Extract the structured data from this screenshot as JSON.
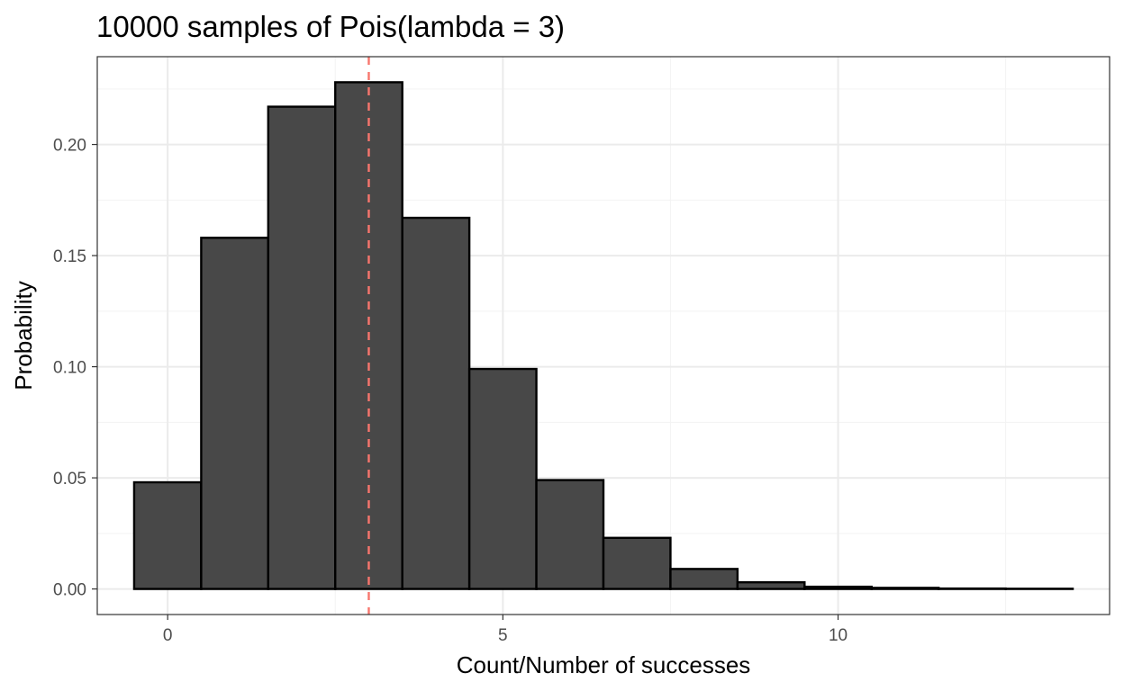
{
  "chart_data": {
    "type": "bar",
    "title": "10000 samples of Pois(lambda = 3)",
    "xlabel": "Count/Number of successes",
    "ylabel": "Probability",
    "x": [
      0,
      1,
      2,
      3,
      4,
      5,
      6,
      7,
      8,
      9,
      10,
      11,
      12,
      13
    ],
    "values": [
      0.048,
      0.158,
      0.217,
      0.228,
      0.167,
      0.099,
      0.049,
      0.023,
      0.009,
      0.003,
      0.001,
      0.0005,
      0.0002,
      0.0001
    ],
    "xlim": [
      -1.05,
      14.05
    ],
    "ylim": [
      -0.0115,
      0.2395
    ],
    "xticks": [
      0,
      5,
      10
    ],
    "yticks": [
      0,
      0.05,
      0.1,
      0.15,
      0.2
    ],
    "xtick_labels": [
      "0",
      "5",
      "10"
    ],
    "ytick_labels": [
      "0.00",
      "0.05",
      "0.10",
      "0.15",
      "0.20"
    ],
    "reference_line": {
      "x": 3,
      "style": "dashed",
      "color": "#F8766D"
    },
    "grid": true,
    "colors": {
      "bar_fill": "#484848",
      "bar_stroke": "#000000",
      "grid_major": "#ebebeb",
      "grid_minor": "#f3f3f3",
      "panel_border": "#333333"
    }
  }
}
